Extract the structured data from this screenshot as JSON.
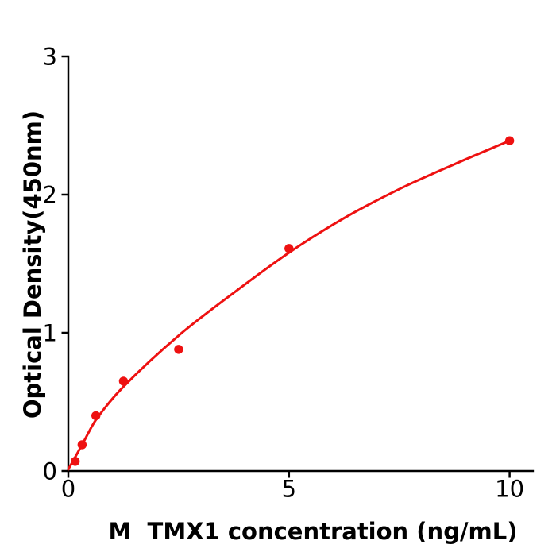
{
  "chart_data": {
    "type": "scatter",
    "title": "",
    "xlabel": "M  TMX1 concentration (ng/mL)",
    "ylabel": "Optical Density(450nm)",
    "xlim": [
      0,
      10.55
    ],
    "ylim": [
      0,
      3
    ],
    "x_ticks": [
      0,
      5,
      10
    ],
    "x_tick_labels": [
      "0",
      "5",
      "10"
    ],
    "y_ticks": [
      0,
      1,
      2,
      3
    ],
    "y_tick_labels": [
      "0",
      "1",
      "2",
      "3"
    ],
    "grid": false,
    "legend": null,
    "series": [
      {
        "name": "standard-points",
        "style": "filled-circle",
        "points": [
          {
            "x": 0.156,
            "y": 0.07
          },
          {
            "x": 0.3125,
            "y": 0.19
          },
          {
            "x": 0.625,
            "y": 0.4
          },
          {
            "x": 1.25,
            "y": 0.65
          },
          {
            "x": 2.5,
            "y": 0.88
          },
          {
            "x": 5,
            "y": 1.61
          },
          {
            "x": 10,
            "y": 2.39
          }
        ]
      },
      {
        "name": "fitted-curve",
        "style": "smooth-line",
        "points": [
          {
            "x": 0,
            "y": 0.012
          },
          {
            "x": 0.3125,
            "y": 0.19
          },
          {
            "x": 0.625,
            "y": 0.37
          },
          {
            "x": 1.25,
            "y": 0.61
          },
          {
            "x": 2.5,
            "y": 0.98
          },
          {
            "x": 3.75,
            "y": 1.29
          },
          {
            "x": 5,
            "y": 1.58
          },
          {
            "x": 6.25,
            "y": 1.83
          },
          {
            "x": 7.5,
            "y": 2.04
          },
          {
            "x": 8.75,
            "y": 2.22
          },
          {
            "x": 10,
            "y": 2.39
          }
        ]
      }
    ],
    "colors": {
      "curve": "#ee1111",
      "points": "#ee1111",
      "axis": "#000000",
      "background": "#ffffff"
    }
  }
}
